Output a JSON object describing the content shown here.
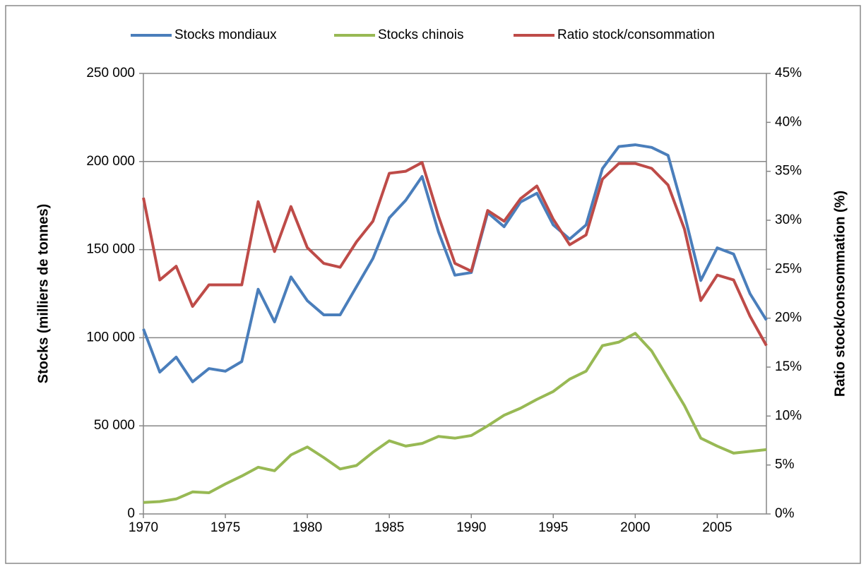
{
  "chart_data": {
    "type": "line",
    "x": [
      1970,
      1971,
      1972,
      1973,
      1974,
      1975,
      1976,
      1977,
      1978,
      1979,
      1980,
      1981,
      1982,
      1983,
      1984,
      1985,
      1986,
      1987,
      1988,
      1989,
      1990,
      1991,
      1992,
      1993,
      1994,
      1995,
      1996,
      1997,
      1998,
      1999,
      2000,
      2001,
      2002,
      2003,
      2004,
      2005,
      2006,
      2007,
      2008
    ],
    "xlim": [
      1970,
      2008
    ],
    "xticks": [
      1970,
      1975,
      1980,
      1985,
      1990,
      1995,
      2000,
      2005
    ],
    "ylabel": "Stocks (milliers de tonnes)",
    "ylim": [
      0,
      250000
    ],
    "yticks": [
      0,
      {
        "value": 50000,
        "label": "50 000"
      },
      {
        "value": 100000,
        "label": "100 000"
      },
      {
        "value": 150000,
        "label": "150 000"
      },
      {
        "value": 200000,
        "label": "200 000"
      },
      {
        "value": 250000,
        "label": "250 000"
      }
    ],
    "y2label": "Ratio stock/consommation (%)",
    "y2lim": [
      0,
      45
    ],
    "y2ticks": [
      {
        "value": 0,
        "label": "0%"
      },
      {
        "value": 5,
        "label": "5%"
      },
      {
        "value": 10,
        "label": "10%"
      },
      {
        "value": 15,
        "label": "15%"
      },
      {
        "value": 20,
        "label": "20%"
      },
      {
        "value": 25,
        "label": "25%"
      },
      {
        "value": 30,
        "label": "30%"
      },
      {
        "value": 35,
        "label": "35%"
      },
      {
        "value": 40,
        "label": "40%"
      },
      {
        "value": 45,
        "label": "45%"
      }
    ],
    "grid": true,
    "legend": "top",
    "series": [
      {
        "name": "Stocks mondiaux",
        "color": "#4a7ebb",
        "values": [
          105000,
          80500,
          89000,
          75000,
          82500,
          81000,
          86500,
          127500,
          109000,
          134500,
          121000,
          113000,
          113000,
          129000,
          145000,
          168000,
          178000,
          191500,
          160000,
          135500,
          137000,
          171000,
          163000,
          177000,
          182000,
          164000,
          156000,
          164000,
          196000,
          208500,
          209500,
          208000,
          203500,
          170000,
          132500,
          151000,
          147500,
          125000,
          110000
        ]
      },
      {
        "name": "Stocks chinois",
        "color": "#98b954",
        "values": [
          6500,
          7000,
          8500,
          12500,
          12000,
          17000,
          21500,
          26500,
          24500,
          33500,
          38000,
          32000,
          25500,
          27500,
          35000,
          41500,
          38500,
          40000,
          44000,
          43000,
          44500,
          50000,
          56000,
          60000,
          65000,
          69500,
          76500,
          81000,
          95500,
          97500,
          102500,
          92500,
          77000,
          61500,
          43000,
          38500,
          34500,
          35500,
          36500
        ]
      },
      {
        "name": "Ratio stock/consommation",
        "color": "#be4b48",
        "axis": "y2",
        "values": [
          32.3,
          23.9,
          25.3,
          21.2,
          23.4,
          23.4,
          23.4,
          31.9,
          26.8,
          31.4,
          27.2,
          25.6,
          25.2,
          27.8,
          29.9,
          34.8,
          35.0,
          35.9,
          30.4,
          25.6,
          24.8,
          31.0,
          29.9,
          32.2,
          33.5,
          30.1,
          27.5,
          28.5,
          34.2,
          35.8,
          35.8,
          35.3,
          33.6,
          29.1,
          21.8,
          24.4,
          23.9,
          20.2,
          17.2
        ]
      }
    ]
  }
}
